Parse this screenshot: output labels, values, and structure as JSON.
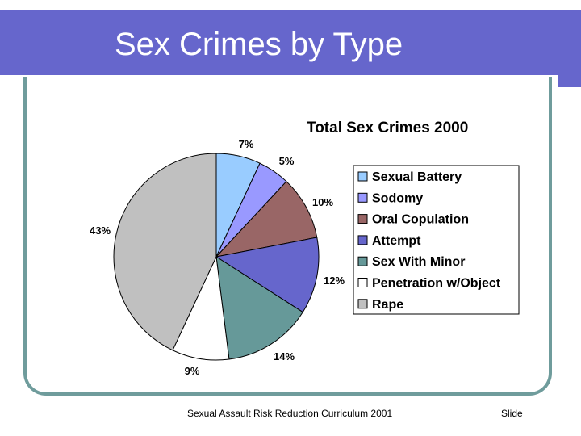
{
  "slide": {
    "title": "Sex Crimes by Type",
    "footer": "Sexual Assault Risk Reduction Curriculum 2001",
    "slide_label": "Slide"
  },
  "colors": {
    "title_bar": "#6666cc",
    "frame": "#6f9c9c"
  },
  "chart_data": {
    "type": "pie",
    "title": "Total Sex Crimes 2000",
    "legend_position": "right",
    "slices": [
      {
        "name": "Sexual Battery",
        "value": 7,
        "label": "7%",
        "color": "#99ccff"
      },
      {
        "name": "Sodomy",
        "value": 5,
        "label": "5%",
        "color": "#9999ff"
      },
      {
        "name": "Oral Copulation",
        "value": 10,
        "label": "10%",
        "color": "#996666"
      },
      {
        "name": "Attempt",
        "value": 12,
        "label": "12%",
        "color": "#6666cc"
      },
      {
        "name": "Sex With Minor",
        "value": 14,
        "label": "14%",
        "color": "#669999"
      },
      {
        "name": "Penetration w/Object",
        "value": 9,
        "label": "9%",
        "color": "#ffffff"
      },
      {
        "name": "Rape",
        "value": 43,
        "label": "43%",
        "color": "#c0c0c0"
      }
    ]
  }
}
